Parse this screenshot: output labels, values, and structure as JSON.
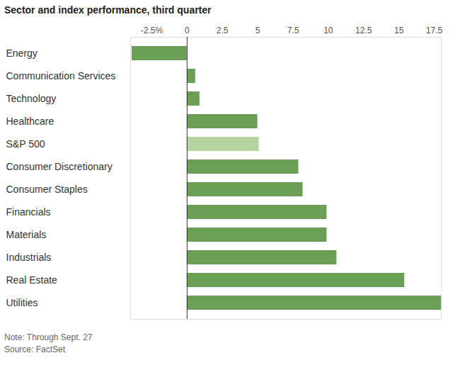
{
  "chart_data": {
    "type": "bar",
    "orientation": "horizontal",
    "title": "Sector and index performance, third quarter",
    "notes": [
      "Note: Through Sept. 27",
      "Source: FactSet"
    ],
    "categories": [
      "Energy",
      "Communication Services",
      "Technology",
      "Healthcare",
      "S&P 500",
      "Consumer Discretionary",
      "Consumer Staples",
      "Financials",
      "Materials",
      "Industrials",
      "Real Estate",
      "Utilities"
    ],
    "values": [
      -3.9,
      0.6,
      0.9,
      5.0,
      5.1,
      7.9,
      8.2,
      9.9,
      9.9,
      10.6,
      15.4,
      18.0
    ],
    "colors": [
      "#6a9f55",
      "#6a9f55",
      "#6a9f55",
      "#6a9f55",
      "#b4d59f",
      "#6a9f55",
      "#6a9f55",
      "#6a9f55",
      "#6a9f55",
      "#6a9f55",
      "#6a9f55",
      "#6a9f55"
    ],
    "xlim": [
      -4,
      18
    ],
    "xticks": [
      {
        "value": -2.5,
        "label": "-2.5%"
      },
      0,
      2.5,
      5,
      7.5,
      10,
      12.5,
      15,
      17.5
    ],
    "grid": false
  }
}
